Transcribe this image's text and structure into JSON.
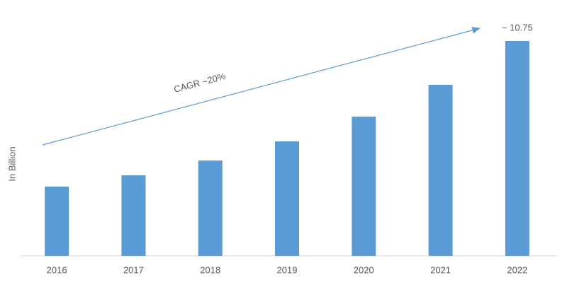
{
  "chart_data": {
    "type": "bar",
    "y_label": "In Billion",
    "annotation": "CAGR ~20%",
    "categories": [
      "2016",
      "2017",
      "2018",
      "2019",
      "2020",
      "2021",
      "2022"
    ],
    "values": [
      3.47,
      4.03,
      4.77,
      5.73,
      6.97,
      8.56,
      10.75
    ],
    "value_labels": [
      null,
      null,
      null,
      null,
      null,
      null,
      "~ 10.75"
    ],
    "color": "#5b9bd5"
  }
}
